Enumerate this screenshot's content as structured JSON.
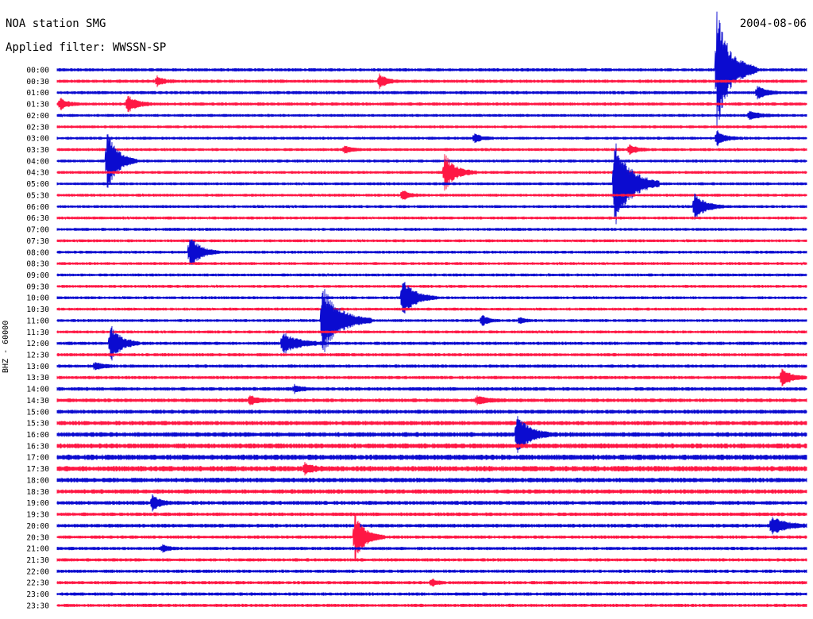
{
  "header": {
    "station_title": "NOA station SMG",
    "filter_line": "Applied filter: WWSSN-SP",
    "date": "2004-08-06"
  },
  "y_axis_label": "BHZ - 60000",
  "colors": {
    "even_trace": "#0b0bd0",
    "odd_trace": "#ff1744",
    "text": "#000000",
    "background": "#ffffff"
  },
  "chart_data": {
    "type": "line",
    "subtype": "helicorder",
    "title": "NOA station SMG",
    "subtitle": "Applied filter: WWSSN-SP",
    "date": "2004-08-06",
    "ylabel": "BHZ - 60000",
    "minutes_per_line": 30,
    "row_labels": [
      "00:00",
      "00:30",
      "01:00",
      "01:30",
      "02:00",
      "02:30",
      "03:00",
      "03:30",
      "04:00",
      "04:30",
      "05:00",
      "05:30",
      "06:00",
      "06:30",
      "07:00",
      "07:30",
      "08:00",
      "08:30",
      "09:00",
      "09:30",
      "10:00",
      "10:30",
      "11:00",
      "11:30",
      "12:00",
      "12:30",
      "13:00",
      "13:30",
      "14:00",
      "14:30",
      "15:00",
      "15:30",
      "16:00",
      "16:30",
      "17:00",
      "17:30",
      "18:00",
      "18:30",
      "19:00",
      "19:30",
      "20:00",
      "20:30",
      "21:00",
      "21:30",
      "22:00",
      "22:30",
      "23:00",
      "23:30"
    ],
    "noise_level": [
      1.8,
      1.8,
      1.8,
      1.8,
      1.6,
      1.6,
      1.6,
      1.6,
      1.6,
      1.6,
      1.6,
      1.6,
      1.6,
      1.6,
      1.6,
      1.6,
      1.6,
      1.6,
      1.6,
      1.6,
      1.6,
      1.6,
      1.6,
      1.6,
      1.8,
      1.8,
      1.8,
      1.8,
      2,
      2,
      2.2,
      2.4,
      2.6,
      2.8,
      3,
      3,
      2.6,
      2.4,
      2.2,
      2,
      2,
      1.8,
      1.8,
      1.8,
      1.8,
      1.8,
      1.8,
      1.8
    ],
    "events": [
      {
        "row": 0,
        "minute": 26.4,
        "amplitude": 78,
        "duration_min": 1.6
      },
      {
        "row": 1,
        "minute": 4.0,
        "amplitude": 6,
        "duration_min": 0.8
      },
      {
        "row": 1,
        "minute": 12.9,
        "amplitude": 9,
        "duration_min": 0.8
      },
      {
        "row": 2,
        "minute": 28.0,
        "amplitude": 9,
        "duration_min": 1.0
      },
      {
        "row": 3,
        "minute": 0.1,
        "amplitude": 8,
        "duration_min": 0.8
      },
      {
        "row": 3,
        "minute": 2.8,
        "amplitude": 12,
        "duration_min": 1.0
      },
      {
        "row": 4,
        "minute": 27.7,
        "amplitude": 5,
        "duration_min": 1.2
      },
      {
        "row": 6,
        "minute": 16.7,
        "amplitude": 6,
        "duration_min": 0.8
      },
      {
        "row": 6,
        "minute": 26.4,
        "amplitude": 10,
        "duration_min": 1.0
      },
      {
        "row": 7,
        "minute": 11.5,
        "amplitude": 5,
        "duration_min": 0.8
      },
      {
        "row": 7,
        "minute": 22.9,
        "amplitude": 7,
        "duration_min": 0.8
      },
      {
        "row": 8,
        "minute": 2.0,
        "amplitude": 42,
        "duration_min": 1.2
      },
      {
        "row": 9,
        "minute": 15.5,
        "amplitude": 24,
        "duration_min": 1.3
      },
      {
        "row": 10,
        "minute": 22.3,
        "amplitude": 65,
        "duration_min": 1.8
      },
      {
        "row": 11,
        "minute": 13.8,
        "amplitude": 7,
        "duration_min": 0.8
      },
      {
        "row": 12,
        "minute": 25.5,
        "amplitude": 18,
        "duration_min": 1.2
      },
      {
        "row": 16,
        "minute": 5.3,
        "amplitude": 22,
        "duration_min": 1.2
      },
      {
        "row": 20,
        "minute": 13.8,
        "amplitude": 26,
        "duration_min": 1.4
      },
      {
        "row": 22,
        "minute": 10.6,
        "amplitude": 48,
        "duration_min": 2.0
      },
      {
        "row": 22,
        "minute": 17.0,
        "amplitude": 7,
        "duration_min": 0.7
      },
      {
        "row": 22,
        "minute": 18.5,
        "amplitude": 5,
        "duration_min": 0.6
      },
      {
        "row": 24,
        "minute": 2.1,
        "amplitude": 26,
        "duration_min": 1.2
      },
      {
        "row": 24,
        "minute": 9.0,
        "amplitude": 14,
        "duration_min": 1.8
      },
      {
        "row": 26,
        "minute": 1.5,
        "amplitude": 6,
        "duration_min": 0.8
      },
      {
        "row": 27,
        "minute": 29.0,
        "amplitude": 12,
        "duration_min": 1.0
      },
      {
        "row": 28,
        "minute": 9.5,
        "amplitude": 5,
        "duration_min": 0.8
      },
      {
        "row": 29,
        "minute": 7.7,
        "amplitude": 7,
        "duration_min": 0.8
      },
      {
        "row": 29,
        "minute": 16.8,
        "amplitude": 5,
        "duration_min": 1.2
      },
      {
        "row": 32,
        "minute": 18.4,
        "amplitude": 26,
        "duration_min": 1.4
      },
      {
        "row": 35,
        "minute": 9.9,
        "amplitude": 6,
        "duration_min": 0.8
      },
      {
        "row": 38,
        "minute": 3.8,
        "amplitude": 11,
        "duration_min": 0.8
      },
      {
        "row": 40,
        "minute": 28.6,
        "amplitude": 12,
        "duration_min": 1.6
      },
      {
        "row": 41,
        "minute": 11.9,
        "amplitude": 30,
        "duration_min": 1.2
      },
      {
        "row": 42,
        "minute": 4.2,
        "amplitude": 6,
        "duration_min": 0.6
      },
      {
        "row": 45,
        "minute": 15.0,
        "amplitude": 5,
        "duration_min": 0.6
      }
    ]
  }
}
